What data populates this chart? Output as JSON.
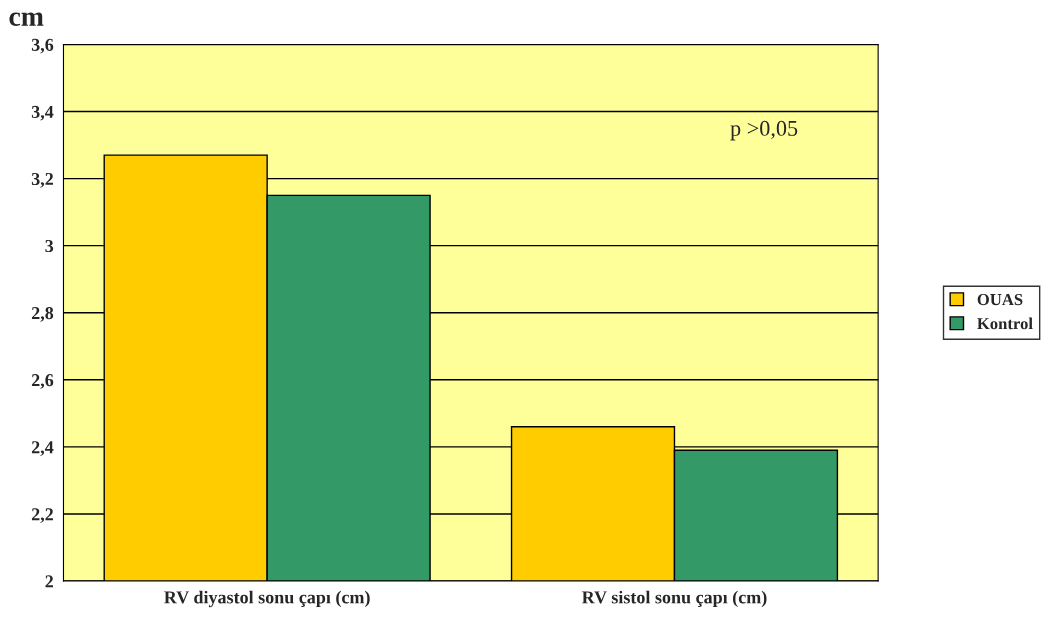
{
  "chart_data": {
    "type": "bar",
    "ylabel": "cm",
    "categories": [
      "RV diyastol sonu çapı (cm)",
      "RV sistol sonu çapı (cm)"
    ],
    "series": [
      {
        "name": "OUAS",
        "color": "#ffcc00",
        "values": [
          3.27,
          2.46
        ]
      },
      {
        "name": "Kontrol",
        "color": "#339966",
        "values": [
          3.15,
          2.39
        ]
      }
    ],
    "ylim": [
      2,
      3.6
    ],
    "yticks": [
      2,
      {
        "value": 2.2,
        "label": "2,2"
      },
      {
        "value": 2.4,
        "label": "2,4"
      },
      {
        "value": 2.6,
        "label": "2,6"
      },
      {
        "value": 2.8,
        "label": "2,8"
      },
      3,
      {
        "value": 3.2,
        "label": "3,2"
      },
      {
        "value": 3.4,
        "label": "3,4"
      },
      {
        "value": 3.6,
        "label": "3,6"
      }
    ],
    "grid": "y",
    "legend": "right",
    "annotations": [
      "p >0,05"
    ]
  }
}
